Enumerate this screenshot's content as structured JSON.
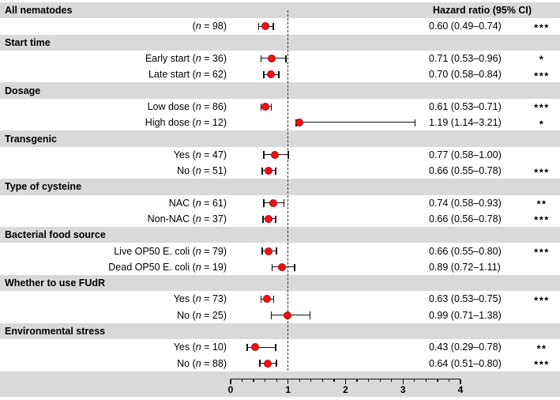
{
  "colors": {
    "band": "#d9d9d9",
    "marker_red": "#ee1111",
    "line_black": "#111111"
  },
  "labels": {
    "n_symbol": "n"
  },
  "chart_data": {
    "type": "scatter",
    "subtype": "forest-plot",
    "title": "",
    "xlabel": "",
    "right_column_header": "Hazard ratio (95% CI)",
    "x_axis": {
      "min": 0,
      "max": 4,
      "major_ticks": [
        0,
        1,
        2,
        3,
        4
      ],
      "minor_step": 0.2,
      "reference_line": 1
    },
    "rows": [
      {
        "kind": "header",
        "label": "All nematodes",
        "right": "Hazard ratio (95% CI)"
      },
      {
        "kind": "estimate",
        "group": "All nematodes",
        "label_pre": "(",
        "label_post": " = 98)",
        "n": 98,
        "hr": 0.6,
        "ci_low": 0.49,
        "ci_high": 0.74,
        "hr_text": "0.60 (0.49–0.74)",
        "sig": "***"
      },
      {
        "kind": "header",
        "label": "Start time"
      },
      {
        "kind": "estimate",
        "group": "Start time",
        "label_pre": "Early start (",
        "label_post": " = 36)",
        "n": 36,
        "hr": 0.71,
        "ci_low": 0.53,
        "ci_high": 0.96,
        "hr_text": "0.71 (0.53–0.96)",
        "sig": "*"
      },
      {
        "kind": "estimate",
        "group": "Start time",
        "label_pre": "Late start (",
        "label_post": " = 62)",
        "n": 62,
        "hr": 0.7,
        "ci_low": 0.58,
        "ci_high": 0.84,
        "hr_text": "0.70 (0.58–0.84)",
        "sig": "***"
      },
      {
        "kind": "header",
        "label": "Dosage"
      },
      {
        "kind": "estimate",
        "group": "Dosage",
        "label_pre": "Low dose (",
        "label_post": " = 86)",
        "n": 86,
        "hr": 0.61,
        "ci_low": 0.53,
        "ci_high": 0.71,
        "hr_text": "0.61 (0.53–0.71)",
        "sig": "***"
      },
      {
        "kind": "estimate",
        "group": "Dosage",
        "label_pre": "High dose (",
        "label_post": " = 12)",
        "n": 12,
        "hr": 1.19,
        "ci_low": 1.14,
        "ci_high": 3.21,
        "hr_text": "1.19 (1.14–3.21)",
        "sig": "*"
      },
      {
        "kind": "header",
        "label": "Transgenic"
      },
      {
        "kind": "estimate",
        "group": "Transgenic",
        "label_pre": "Yes (",
        "label_post": " = 47)",
        "n": 47,
        "hr": 0.77,
        "ci_low": 0.58,
        "ci_high": 1.0,
        "hr_text": "0.77 (0.58–1.00)",
        "sig": ""
      },
      {
        "kind": "estimate",
        "group": "Transgenic",
        "label_pre": "No (",
        "label_post": " = 51)",
        "n": 51,
        "hr": 0.66,
        "ci_low": 0.55,
        "ci_high": 0.78,
        "hr_text": "0.66 (0.55–0.78)",
        "sig": "***"
      },
      {
        "kind": "header",
        "label": "Type of cysteine"
      },
      {
        "kind": "estimate",
        "group": "Type of cysteine",
        "label_pre": "NAC (",
        "label_post": " = 61)",
        "n": 61,
        "hr": 0.74,
        "ci_low": 0.58,
        "ci_high": 0.93,
        "hr_text": "0.74 (0.58–0.93)",
        "sig": "**"
      },
      {
        "kind": "estimate",
        "group": "Type of cysteine",
        "label_pre": "Non-NAC (",
        "label_post": " = 37)",
        "n": 37,
        "hr": 0.66,
        "ci_low": 0.56,
        "ci_high": 0.78,
        "hr_text": "0.66 (0.56–0.78)",
        "sig": "***"
      },
      {
        "kind": "header",
        "label": "Bacterial food source"
      },
      {
        "kind": "estimate",
        "group": "Bacterial food source",
        "label_pre": "Live OP50 E. coli (",
        "label_post": " = 79)",
        "n": 79,
        "hr": 0.66,
        "ci_low": 0.55,
        "ci_high": 0.8,
        "hr_text": "0.66 (0.55–0.80)",
        "sig": "***"
      },
      {
        "kind": "estimate",
        "group": "Bacterial food source",
        "label_pre": "Dead OP50 E. coli (",
        "label_post": " = 19)",
        "n": 19,
        "hr": 0.89,
        "ci_low": 0.72,
        "ci_high": 1.11,
        "hr_text": "0.89 (0.72–1.11)",
        "sig": ""
      },
      {
        "kind": "header",
        "label": "Whether to use FUdR"
      },
      {
        "kind": "estimate",
        "group": "Whether to use FUdR",
        "label_pre": "Yes (",
        "label_post": " = 73)",
        "n": 73,
        "hr": 0.63,
        "ci_low": 0.53,
        "ci_high": 0.75,
        "hr_text": "0.63 (0.53–0.75)",
        "sig": "***"
      },
      {
        "kind": "estimate",
        "group": "Whether to use FUdR",
        "label_pre": "No (",
        "label_post": " = 25)",
        "n": 25,
        "hr": 0.99,
        "ci_low": 0.71,
        "ci_high": 1.38,
        "hr_text": "0.99 (0.71–1.38)",
        "sig": ""
      },
      {
        "kind": "header",
        "label": "Environmental stress"
      },
      {
        "kind": "estimate",
        "group": "Environmental stress",
        "label_pre": "Yes (",
        "label_post": " = 10)",
        "n": 10,
        "hr": 0.43,
        "ci_low": 0.29,
        "ci_high": 0.78,
        "hr_text": "0.43 (0.29–0.78)",
        "sig": "**"
      },
      {
        "kind": "estimate",
        "group": "Environmental stress",
        "label_pre": "No (",
        "label_post": " = 88)",
        "n": 88,
        "hr": 0.64,
        "ci_low": 0.51,
        "ci_high": 0.8,
        "hr_text": "0.64 (0.51–0.80)",
        "sig": "***"
      }
    ]
  }
}
